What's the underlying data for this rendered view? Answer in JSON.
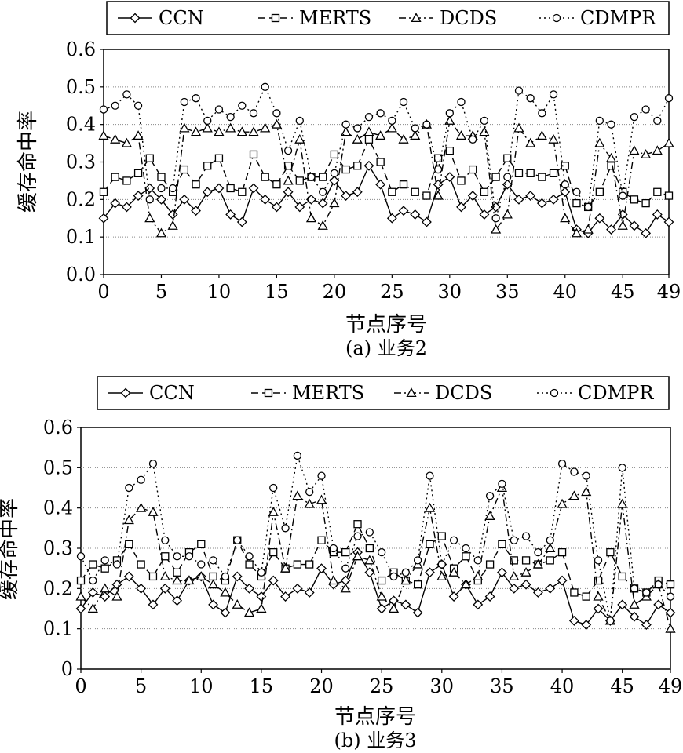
{
  "chart_data": [
    {
      "type": "line",
      "panel_id": "a",
      "caption": "(a) 业务2",
      "xlabel": "节点序号",
      "ylabel": "缓存命中率",
      "xlim": [
        0,
        49
      ],
      "ylim": [
        0,
        0.6
      ],
      "xticks": [
        0,
        5,
        10,
        15,
        20,
        25,
        30,
        35,
        40,
        45,
        49
      ],
      "yticks": [
        0,
        0.1,
        0.2,
        0.3,
        0.4,
        0.5,
        0.6
      ],
      "ytick_labels": [
        "0.0",
        "0.1",
        "0.2",
        "0.3",
        "0.4",
        "0.5",
        "0.6"
      ],
      "grid": true,
      "legend_position": "top",
      "series": [
        {
          "name": "CCN",
          "marker": "diamond",
          "dash": "solid",
          "values": [
            0.15,
            0.19,
            0.18,
            0.21,
            0.23,
            0.2,
            0.16,
            0.2,
            0.17,
            0.22,
            0.23,
            0.16,
            0.14,
            0.23,
            0.2,
            0.18,
            0.22,
            0.18,
            0.2,
            0.19,
            0.25,
            0.21,
            0.22,
            0.29,
            0.24,
            0.15,
            0.17,
            0.16,
            0.14,
            0.24,
            0.26,
            0.18,
            0.21,
            0.16,
            0.18,
            0.24,
            0.2,
            0.21,
            0.19,
            0.2,
            0.22,
            0.12,
            0.11,
            0.15,
            0.12,
            0.16,
            0.13,
            0.11,
            0.16,
            0.14
          ]
        },
        {
          "name": "MERTS",
          "marker": "square",
          "dash": "longdash",
          "values": [
            0.22,
            0.26,
            0.25,
            0.27,
            0.31,
            0.26,
            0.22,
            0.28,
            0.24,
            0.29,
            0.31,
            0.23,
            0.22,
            0.32,
            0.26,
            0.24,
            0.29,
            0.25,
            0.26,
            0.26,
            0.32,
            0.28,
            0.29,
            0.36,
            0.3,
            0.22,
            0.24,
            0.22,
            0.21,
            0.31,
            0.33,
            0.25,
            0.28,
            0.22,
            0.26,
            0.31,
            0.27,
            0.27,
            0.26,
            0.27,
            0.29,
            0.19,
            0.18,
            0.22,
            0.29,
            0.22,
            0.2,
            0.19,
            0.22,
            0.21
          ]
        },
        {
          "name": "DCDS",
          "marker": "triangle",
          "dash": "dashdot",
          "values": [
            0.37,
            0.36,
            0.35,
            0.37,
            0.15,
            0.11,
            0.13,
            0.39,
            0.38,
            0.39,
            0.38,
            0.39,
            0.38,
            0.38,
            0.39,
            0.4,
            0.25,
            0.36,
            0.15,
            0.13,
            0.19,
            0.38,
            0.36,
            0.38,
            0.37,
            0.39,
            0.36,
            0.37,
            0.4,
            0.21,
            0.41,
            0.37,
            0.37,
            0.38,
            0.12,
            0.16,
            0.39,
            0.35,
            0.37,
            0.36,
            0.15,
            0.11,
            0.12,
            0.35,
            0.31,
            0.13,
            0.33,
            0.32,
            0.33,
            0.35
          ]
        },
        {
          "name": "CDMPR",
          "marker": "circle",
          "dash": "dotted",
          "values": [
            0.44,
            0.45,
            0.48,
            0.45,
            0.2,
            0.23,
            0.23,
            0.46,
            0.47,
            0.41,
            0.44,
            0.42,
            0.45,
            0.43,
            0.5,
            0.43,
            0.33,
            0.41,
            0.26,
            0.22,
            0.27,
            0.4,
            0.39,
            0.42,
            0.43,
            0.41,
            0.46,
            0.39,
            0.4,
            0.28,
            0.43,
            0.46,
            0.36,
            0.41,
            0.15,
            0.26,
            0.49,
            0.47,
            0.43,
            0.48,
            0.24,
            0.22,
            0.18,
            0.41,
            0.4,
            0.21,
            0.42,
            0.44,
            0.41,
            0.47
          ]
        }
      ]
    },
    {
      "type": "line",
      "panel_id": "b",
      "caption": "(b) 业务3",
      "xlabel": "节点序号",
      "ylabel": "缓存命中率",
      "xlim": [
        0,
        49
      ],
      "ylim": [
        0,
        0.6
      ],
      "xticks": [
        0,
        5,
        10,
        15,
        20,
        25,
        30,
        35,
        40,
        45,
        49
      ],
      "yticks": [
        0,
        0.1,
        0.2,
        0.3,
        0.4,
        0.5,
        0.6
      ],
      "ytick_labels": [
        "0",
        "0.1",
        "0.2",
        "0.3",
        "0.4",
        "0.5",
        "0.6"
      ],
      "grid": true,
      "legend_position": "top",
      "series": [
        {
          "name": "CCN",
          "marker": "diamond",
          "dash": "solid",
          "values": [
            0.15,
            0.19,
            0.18,
            0.21,
            0.23,
            0.2,
            0.16,
            0.2,
            0.17,
            0.22,
            0.23,
            0.16,
            0.14,
            0.23,
            0.2,
            0.18,
            0.22,
            0.18,
            0.2,
            0.19,
            0.25,
            0.21,
            0.22,
            0.29,
            0.24,
            0.15,
            0.17,
            0.16,
            0.14,
            0.24,
            0.26,
            0.18,
            0.21,
            0.16,
            0.18,
            0.24,
            0.2,
            0.21,
            0.19,
            0.2,
            0.22,
            0.12,
            0.11,
            0.15,
            0.12,
            0.16,
            0.13,
            0.11,
            0.16,
            0.14
          ]
        },
        {
          "name": "MERTS",
          "marker": "square",
          "dash": "longdash",
          "values": [
            0.22,
            0.26,
            0.25,
            0.27,
            0.31,
            0.26,
            0.23,
            0.28,
            0.24,
            0.29,
            0.31,
            0.23,
            0.22,
            0.32,
            0.26,
            0.23,
            0.29,
            0.25,
            0.26,
            0.26,
            0.32,
            0.29,
            0.29,
            0.36,
            0.3,
            0.22,
            0.24,
            0.22,
            0.21,
            0.31,
            0.33,
            0.25,
            0.28,
            0.22,
            0.26,
            0.31,
            0.27,
            0.27,
            0.26,
            0.27,
            0.29,
            0.19,
            0.18,
            0.22,
            0.29,
            0.23,
            0.2,
            0.19,
            0.22,
            0.21
          ]
        },
        {
          "name": "DCDS",
          "marker": "triangle",
          "dash": "dashdot",
          "values": [
            0.18,
            0.15,
            0.2,
            0.18,
            0.37,
            0.4,
            0.39,
            0.23,
            0.22,
            0.22,
            0.23,
            0.21,
            0.19,
            0.16,
            0.14,
            0.15,
            0.39,
            0.25,
            0.43,
            0.41,
            0.42,
            0.22,
            0.2,
            0.28,
            0.27,
            0.18,
            0.15,
            0.22,
            0.26,
            0.4,
            0.23,
            0.24,
            0.21,
            0.23,
            0.38,
            0.45,
            0.23,
            0.24,
            0.26,
            0.3,
            0.41,
            0.43,
            0.44,
            0.18,
            0.12,
            0.41,
            0.16,
            0.18,
            0.21,
            0.1
          ]
        },
        {
          "name": "CDMPR",
          "marker": "circle",
          "dash": "dotted",
          "values": [
            0.28,
            0.22,
            0.27,
            0.26,
            0.45,
            0.47,
            0.51,
            0.32,
            0.28,
            0.28,
            0.26,
            0.27,
            0.23,
            0.32,
            0.28,
            0.24,
            0.45,
            0.35,
            0.53,
            0.44,
            0.48,
            0.3,
            0.25,
            0.33,
            0.34,
            0.29,
            0.23,
            0.24,
            0.27,
            0.48,
            0.26,
            0.32,
            0.3,
            0.27,
            0.43,
            0.46,
            0.32,
            0.33,
            0.29,
            0.32,
            0.51,
            0.49,
            0.48,
            0.27,
            0.12,
            0.5,
            0.2,
            0.19,
            0.21,
            0.18
          ]
        }
      ]
    }
  ]
}
